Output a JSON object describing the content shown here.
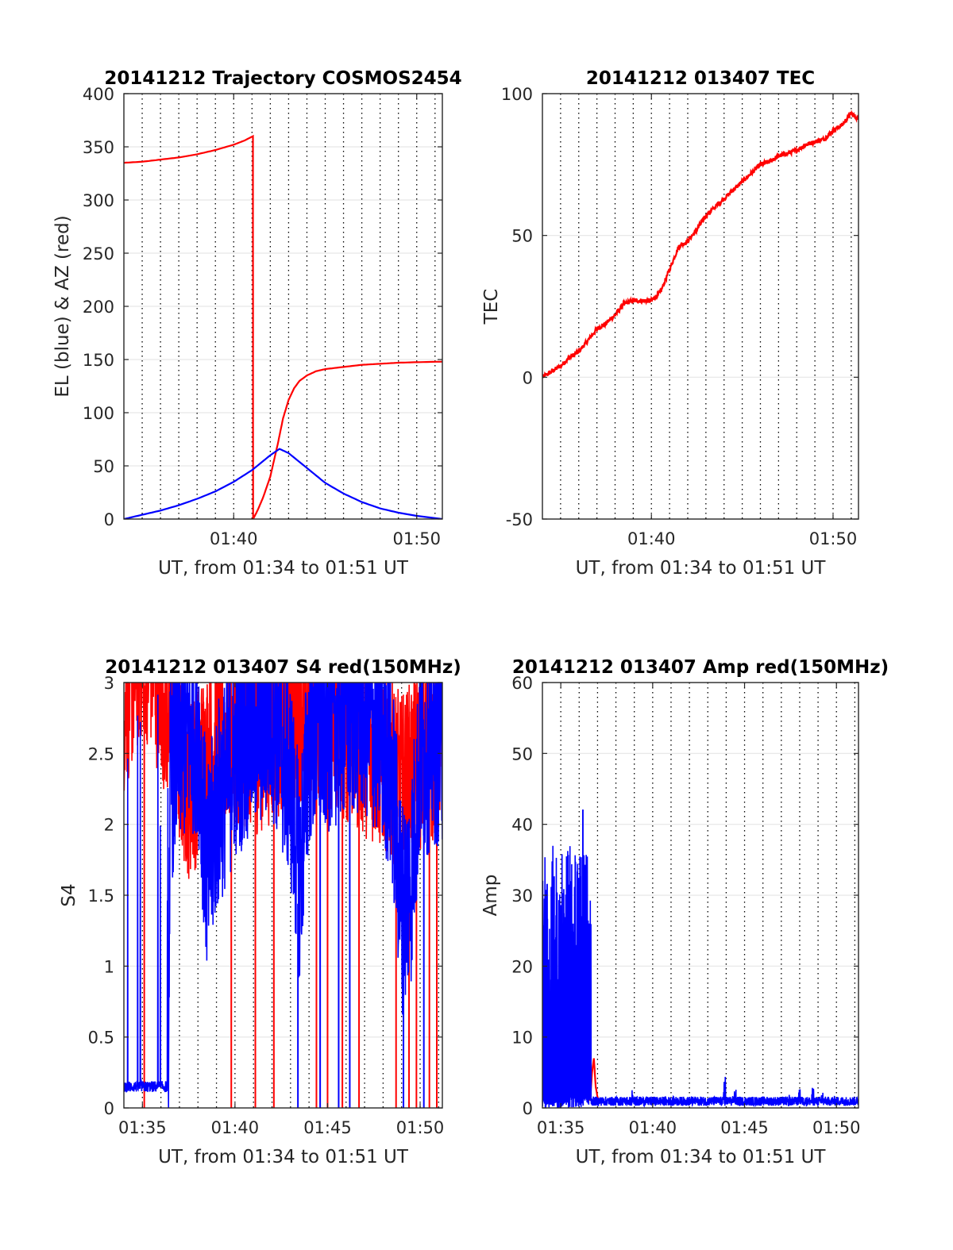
{
  "colors": {
    "el": "#0000ff",
    "az": "#ff0000",
    "tec": "#ff0000",
    "red_series": "#ff0000",
    "blue_series": "#0000ff",
    "grid": "#e6e6e6",
    "dotted": "#000000"
  },
  "chart_data": [
    {
      "id": "trajectory",
      "type": "line",
      "title": "20141212 Trajectory COSMOS2454",
      "xlabel": "UT, from 01:34 to 01:51 UT",
      "ylabel": "EL (blue) & AZ (red)",
      "xlim": [
        0,
        17.4
      ],
      "ylim": [
        0,
        400
      ],
      "yticks": [
        0,
        50,
        100,
        150,
        200,
        250,
        300,
        350,
        400
      ],
      "xticks": [
        {
          "x": 6,
          "label": "01:40"
        },
        {
          "x": 16,
          "label": "01:50"
        }
      ],
      "dotted_x_every_minutes": 1,
      "grid": true,
      "series": [
        {
          "key": "az",
          "color": "#ff0000",
          "x": [
            0,
            1,
            2,
            3,
            4,
            5,
            6,
            6.6,
            7.05,
            7.06,
            7.3,
            7.6,
            8.0,
            8.4,
            8.7,
            9.0,
            9.3,
            9.6,
            10.0,
            10.5,
            11.0,
            12.0,
            13.0,
            14.0,
            15.0,
            16.0,
            17.4
          ],
          "y": [
            335,
            336,
            338,
            340,
            343,
            347,
            352,
            356,
            360,
            0,
            8,
            20,
            40,
            70,
            95,
            112,
            123,
            130,
            135,
            139,
            141,
            143,
            145,
            146,
            147,
            147.5,
            148
          ]
        },
        {
          "key": "el",
          "color": "#0000ff",
          "x": [
            0,
            1,
            2,
            3,
            4,
            5,
            6,
            7,
            8,
            8.5,
            9,
            10,
            11,
            12,
            13,
            14,
            15,
            16,
            17.4
          ],
          "y": [
            0,
            4,
            8,
            13,
            19,
            26,
            35,
            46,
            60,
            66,
            62,
            48,
            34,
            24,
            16,
            10,
            6,
            3,
            0
          ]
        }
      ]
    },
    {
      "id": "tec",
      "type": "line",
      "title": "20141212 013407 TEC",
      "xlabel": "UT, from 01:34 to 01:51 UT",
      "ylabel": "TEC",
      "xlim": [
        0,
        17.4
      ],
      "ylim": [
        -50,
        100
      ],
      "yticks": [
        -50,
        0,
        50,
        100
      ],
      "xticks": [
        {
          "x": 6,
          "label": "01:40"
        },
        {
          "x": 16,
          "label": "01:50"
        }
      ],
      "dotted_x_every_minutes": 1,
      "grid": true,
      "series": [
        {
          "key": "tec",
          "color": "#ff0000",
          "x": [
            0,
            0.5,
            1,
            1.5,
            2,
            2.5,
            3,
            3.5,
            4,
            4.5,
            5,
            5.5,
            6,
            6.5,
            7,
            7.5,
            8,
            8.5,
            9,
            9.5,
            10,
            10.5,
            11,
            11.5,
            12,
            12.5,
            13,
            13.5,
            14,
            14.5,
            15,
            15.5,
            16,
            16.5,
            17,
            17.4
          ],
          "y": [
            0,
            2,
            4,
            7,
            9,
            13,
            17,
            19,
            22,
            26,
            27,
            27,
            27,
            30,
            38,
            46,
            48,
            52,
            57,
            60,
            63,
            66,
            69,
            72,
            75,
            76,
            78,
            79,
            80,
            82,
            83,
            84,
            87,
            89,
            93,
            91
          ]
        }
      ]
    },
    {
      "id": "s4",
      "type": "line",
      "title": "20141212 013407 S4 red(150MHz)",
      "xlabel": "UT, from 01:34 to 01:51 UT",
      "ylabel": "S4",
      "xlim": [
        0,
        17.2
      ],
      "ylim": [
        0,
        3
      ],
      "yticks": [
        0,
        0.5,
        1,
        1.5,
        2,
        2.5,
        3
      ],
      "yticklabels": [
        "0",
        "0.5",
        "1",
        "1.5",
        "2",
        "2.5",
        "3"
      ],
      "xticks": [
        {
          "x": 1,
          "label": "01:35"
        },
        {
          "x": 6,
          "label": "01:40"
        },
        {
          "x": 11,
          "label": "01:45"
        },
        {
          "x": 16,
          "label": "01:50"
        }
      ],
      "dotted_x_every_minutes": 1,
      "grid": true,
      "series": [
        {
          "key": "s4_red",
          "color": "#ff0000",
          "noisy": true,
          "envelope_x": [
            0,
            0.5,
            1,
            1.5,
            2,
            2.5,
            3,
            3.5,
            4,
            5,
            6,
            7,
            8,
            9,
            10,
            11,
            12,
            13,
            14,
            15,
            16,
            17,
            17.2
          ],
          "envelope_y": [
            2.6,
            2.8,
            3.0,
            2.9,
            2.7,
            2.5,
            2.2,
            2.0,
            2.1,
            2.3,
            2.4,
            2.3,
            2.4,
            2.5,
            2.6,
            2.5,
            2.4,
            2.3,
            2.2,
            2.0,
            2.2,
            2.3,
            2.4
          ],
          "spread": 0.6,
          "dropout_x": [
            1.1,
            5.8,
            7.1,
            8.1,
            10.4,
            11.0,
            11.8,
            12.7,
            14.7,
            15.4,
            15.8,
            16.5,
            16.9
          ]
        },
        {
          "key": "s4_blue",
          "color": "#0000ff",
          "noisy": true,
          "envelope_x": [
            0,
            0.3,
            0.6,
            1.0,
            1.5,
            2.0,
            2.4,
            2.5,
            3,
            4,
            4.5,
            5,
            6,
            7,
            8,
            9,
            9.5,
            10,
            11,
            12,
            13,
            14,
            14.5,
            15,
            15.5,
            16,
            17,
            17.2
          ],
          "envelope_y": [
            0.15,
            0.15,
            0.15,
            0.15,
            0.15,
            0.15,
            0.15,
            2.0,
            2.3,
            2.4,
            1.3,
            1.8,
            2.2,
            2.4,
            2.5,
            2.0,
            1.3,
            2.3,
            2.4,
            2.5,
            2.5,
            2.3,
            2.0,
            1.1,
            1.3,
            2.2,
            2.3,
            2.3
          ],
          "spread": 0.7,
          "dropout_x": [
            9.4,
            10.6,
            11.6,
            12.2,
            15.1,
            16.2
          ]
        }
      ]
    },
    {
      "id": "amp",
      "type": "line",
      "title": "20141212 013407 Amp red(150MHz)",
      "xlabel": "UT, from 01:34 to 01:51 UT",
      "ylabel": "Amp",
      "xlim": [
        0,
        17.2
      ],
      "ylim": [
        0,
        60
      ],
      "yticks": [
        0,
        10,
        20,
        30,
        40,
        50,
        60
      ],
      "xticks": [
        {
          "x": 1,
          "label": "01:35"
        },
        {
          "x": 6,
          "label": "01:40"
        },
        {
          "x": 11,
          "label": "01:45"
        },
        {
          "x": 16,
          "label": "01:50"
        }
      ],
      "dotted_x_every_minutes": 1,
      "grid": true,
      "series": [
        {
          "key": "amp_red",
          "color": "#ff0000",
          "x": [
            2.6,
            2.7,
            2.8,
            2.9,
            3.0,
            3.1
          ],
          "y": [
            1,
            5,
            7,
            3,
            1.5,
            1
          ]
        },
        {
          "key": "amp_blue",
          "color": "#0000ff",
          "noisy": true,
          "segments": [
            {
              "x0": 0,
              "x1": 2.65,
              "min": 0,
              "max": 37,
              "peak_x": 2.2,
              "peak_y": 42
            },
            {
              "x0": 2.65,
              "x1": 17.2,
              "min": 0.3,
              "max": 1.6
            }
          ],
          "bumps": [
            {
              "x": 4.9,
              "y": 3.5
            },
            {
              "x": 5.2,
              "y": 2.5
            },
            {
              "x": 10.5,
              "y": 2.6
            },
            {
              "x": 9.9,
              "y": 5.5
            },
            {
              "x": 13.4,
              "y": 3.0
            },
            {
              "x": 14.0,
              "y": 2.8
            },
            {
              "x": 14.7,
              "y": 3.0
            },
            {
              "x": 15.2,
              "y": 2.6
            }
          ]
        }
      ]
    }
  ]
}
